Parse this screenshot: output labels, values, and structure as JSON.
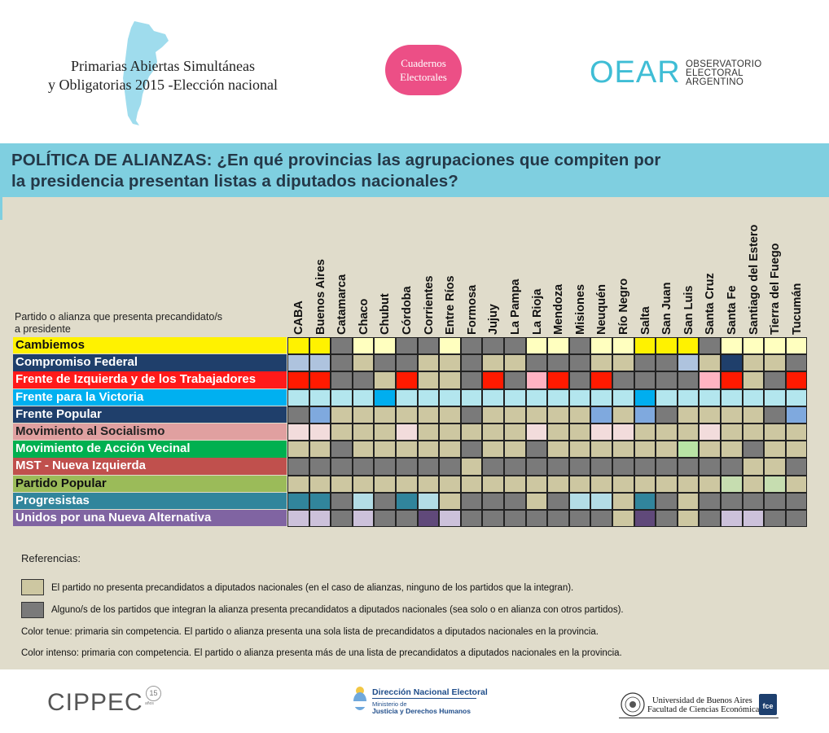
{
  "header": {
    "title_line1": "Primarias Abiertas Simultáneas",
    "title_line2": "y Obligatorias 2015 -Elección nacional",
    "badge_line1": "Cuadernos",
    "badge_line2": "Electorales",
    "logo_big": "OEAR",
    "logo_small1": "OBSERVATORIO",
    "logo_small2": "ELECTORAL",
    "logo_small3": "ARGENTINO"
  },
  "banner": {
    "line1": "POLÍTICA DE ALIANZAS: ¿En qué provincias las agrupaciones que compiten por",
    "line2": "la presidencia presentan listas a diputados nacionales?"
  },
  "table": {
    "corner_label_line1": "Partido o alianza que presenta precandidato/s",
    "corner_label_line2": "a presidente",
    "provinces": [
      "CABA",
      "Buenos Aires",
      "Catamarca",
      "Chaco",
      "Chubut",
      "Córdoba",
      "Corrientes",
      "Entre Ríos",
      "Formosa",
      "Jujuy",
      "La Pampa",
      "La Rioja",
      "Mendoza",
      "Misiones",
      "Neuquén",
      "Río Negro",
      "Salta",
      "San Juan",
      "San Luis",
      "Santa Cruz",
      "Santa Fe",
      "Santiago del Estero",
      "Tierra del Fuego",
      "Tucumán"
    ],
    "legend_codes": {
      "0": "no list (beige)",
      "1": "alliance partner list (gray)",
      "2": "single list (light)",
      "3": "competitive primary (intense)"
    },
    "colors": {
      "beige": "#cdc7a1",
      "gray": "#7a7a7a"
    },
    "rows": [
      {
        "name": "Cambiemos",
        "label_bg": "#fff200",
        "label_color": "#111111",
        "light": "#ffffbf",
        "intense": "#fff200",
        "cells": [
          3,
          3,
          1,
          2,
          2,
          1,
          1,
          2,
          1,
          1,
          1,
          2,
          2,
          1,
          2,
          2,
          3,
          3,
          3,
          1,
          2,
          2,
          2,
          2
        ]
      },
      {
        "name": "Compromiso Federal",
        "label_bg": "#1f3f6b",
        "label_color": "#ffffff",
        "light": "#aec3de",
        "intense": "#1f3f6b",
        "cells": [
          2,
          2,
          1,
          0,
          1,
          1,
          0,
          0,
          1,
          0,
          0,
          1,
          1,
          1,
          0,
          0,
          1,
          1,
          2,
          0,
          3,
          0,
          0,
          1
        ]
      },
      {
        "name": "Frente de Izquierda y de los Trabajadores",
        "label_bg": "#ff1a1a",
        "label_color": "#ffffff",
        "light": "#ffb3c2",
        "intense": "#ff1a00",
        "cells": [
          3,
          3,
          1,
          1,
          0,
          3,
          0,
          0,
          1,
          3,
          1,
          2,
          3,
          1,
          3,
          1,
          1,
          1,
          1,
          2,
          3,
          0,
          1,
          3
        ]
      },
      {
        "name": "Frente para la Victoria",
        "label_bg": "#00b0f0",
        "label_color": "#ffffff",
        "light": "#b3e6ee",
        "intense": "#00aeef",
        "cells": [
          2,
          2,
          2,
          2,
          3,
          2,
          2,
          2,
          2,
          2,
          2,
          2,
          2,
          2,
          2,
          2,
          3,
          2,
          2,
          2,
          2,
          2,
          2,
          2
        ]
      },
      {
        "name": "Frente Popular",
        "label_bg": "#1f3f6b",
        "label_color": "#ffffff",
        "light": "#7fa9de",
        "intense": "#5b8bd6",
        "cells": [
          1,
          2,
          0,
          0,
          0,
          0,
          0,
          0,
          1,
          0,
          0,
          0,
          0,
          0,
          2,
          0,
          2,
          1,
          0,
          0,
          0,
          0,
          1,
          2
        ]
      },
      {
        "name": "Movimiento al Socialismo",
        "label_bg": "#e0a0a0",
        "label_color": "#222222",
        "light": "#f2dcdc",
        "intense": "#e0a0a0",
        "cells": [
          2,
          2,
          0,
          0,
          0,
          2,
          0,
          0,
          0,
          0,
          0,
          2,
          0,
          0,
          2,
          2,
          0,
          0,
          0,
          2,
          0,
          0,
          0,
          0
        ]
      },
      {
        "name": "Movimiento de Acción Vecinal",
        "label_bg": "#00b050",
        "label_color": "#ffffff",
        "light": "#b8e3a5",
        "intense": "#00b050",
        "cells": [
          0,
          0,
          1,
          0,
          0,
          0,
          0,
          0,
          1,
          0,
          0,
          1,
          0,
          0,
          0,
          0,
          0,
          0,
          2,
          0,
          0,
          1,
          0,
          0
        ]
      },
      {
        "name": "MST - Nueva Izquierda",
        "label_bg": "#c0504d",
        "label_color": "#ffffff",
        "light": "#e6b8b7",
        "intense": "#c0504d",
        "cells": [
          1,
          1,
          1,
          1,
          1,
          1,
          1,
          1,
          0,
          1,
          1,
          1,
          1,
          1,
          1,
          1,
          1,
          1,
          1,
          1,
          1,
          0,
          0,
          1
        ]
      },
      {
        "name": "Partido Popular",
        "label_bg": "#9bbb59",
        "label_color": "#111111",
        "light": "#c6ddb0",
        "intense": "#9bbb59",
        "cells": [
          0,
          0,
          0,
          0,
          0,
          0,
          0,
          0,
          0,
          0,
          0,
          0,
          0,
          0,
          0,
          0,
          0,
          0,
          0,
          0,
          2,
          0,
          2,
          0
        ]
      },
      {
        "name": "Progresistas",
        "label_bg": "#31859c",
        "label_color": "#ffffff",
        "light": "#b3dde6",
        "intense": "#31859c",
        "cells": [
          3,
          3,
          1,
          2,
          1,
          3,
          2,
          0,
          1,
          1,
          1,
          0,
          1,
          2,
          2,
          0,
          3,
          1,
          0,
          1,
          1,
          1,
          1,
          1
        ]
      },
      {
        "name": "Unidos por una Nueva Alternativa",
        "label_bg": "#8064a2",
        "label_color": "#ffffff",
        "light": "#ccc1da",
        "intense": "#60497a",
        "cells": [
          2,
          2,
          1,
          2,
          1,
          1,
          3,
          2,
          1,
          1,
          1,
          1,
          1,
          1,
          1,
          0,
          3,
          1,
          0,
          1,
          2,
          2,
          1,
          1
        ]
      }
    ]
  },
  "references": {
    "title": "Referencias:",
    "beige_text": "El partido no presenta precandidatos a diputados nacionales (en el caso de alianzas, ninguno de los partidos que la integran).",
    "gray_text": "Alguno/s de los partidos que integran la alianza presenta precandidatos a diputados nacionales (sea solo o en alianza con otros partidos).",
    "light_text": "Color tenue: primaria sin competencia. El partido o alianza presenta una sola lista de precandidatos a diputados nacionales en la provincia.",
    "intense_text": "Color intenso: primaria con competencia. El partido o alianza presenta más de una lista de precandidatos a diputados nacionales en la provincia."
  },
  "footer": {
    "cippec": "CIPPEC",
    "cippec_badge": "15",
    "cippec_badge_sub": "años",
    "dne_title": "Dirección Nacional Electoral",
    "dne_sub1": "Ministerio de",
    "dne_sub2": "Justicia y Derechos Humanos",
    "uba_line1": "Universidad de Buenos Aires",
    "uba_line2": "Facultad de Ciencias Económicas",
    "fce": "fce"
  }
}
